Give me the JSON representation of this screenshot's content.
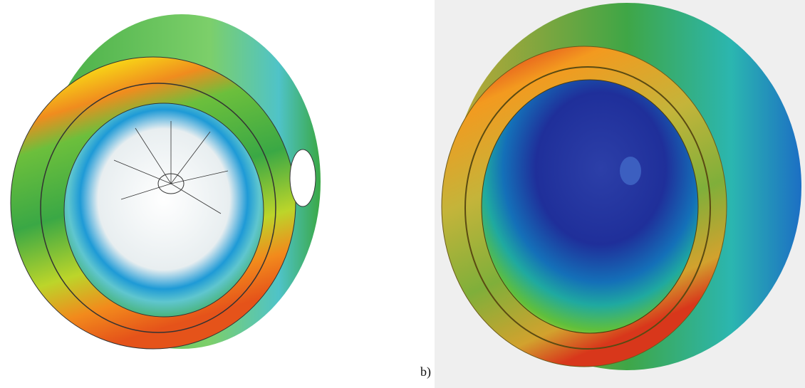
{
  "figure": {
    "label": "b)"
  }
}
